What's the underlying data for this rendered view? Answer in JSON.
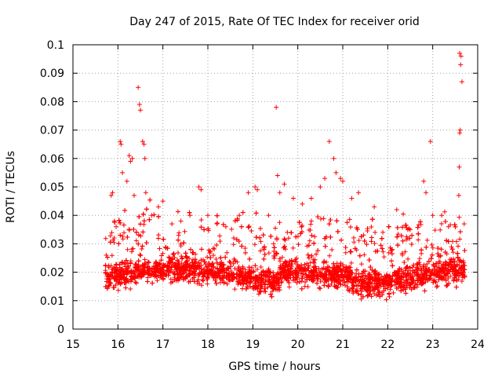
{
  "chart_data": {
    "type": "scatter",
    "title": "Day 247 of 2015, Rate Of TEC Index for receiver orid",
    "xlabel": "GPS time / hours",
    "ylabel": "ROTI / TECUs",
    "xlim": [
      15,
      24
    ],
    "ylim": [
      0,
      0.1
    ],
    "x_ticks": [
      "15",
      "16",
      "17",
      "18",
      "19",
      "20",
      "21",
      "22",
      "23",
      "24"
    ],
    "y_ticks": [
      "0",
      "0.01",
      "0.02",
      "0.03",
      "0.04",
      "0.05",
      "0.06",
      "0.07",
      "0.08",
      "0.09",
      "0.1"
    ],
    "grid": true,
    "legend": "none",
    "marker": "+",
    "color": "#ff0000",
    "series": [
      {
        "values": [
          [
            15.74,
            0.026
          ],
          [
            15.8,
            0.019
          ],
          [
            15.85,
            0.047
          ],
          [
            15.88,
            0.048
          ],
          [
            15.92,
            0.038
          ],
          [
            15.96,
            0.036
          ],
          [
            16.05,
            0.066
          ],
          [
            16.07,
            0.065
          ],
          [
            16.1,
            0.055
          ],
          [
            16.2,
            0.052
          ],
          [
            16.25,
            0.061
          ],
          [
            16.28,
            0.059
          ],
          [
            16.32,
            0.06
          ],
          [
            16.36,
            0.047
          ],
          [
            16.45,
            0.085
          ],
          [
            16.48,
            0.079
          ],
          [
            16.5,
            0.077
          ],
          [
            16.55,
            0.066
          ],
          [
            16.58,
            0.065
          ],
          [
            16.6,
            0.06
          ],
          [
            16.62,
            0.048
          ],
          [
            16.75,
            0.04
          ],
          [
            16.9,
            0.043
          ],
          [
            17.0,
            0.045
          ],
          [
            17.2,
            0.037
          ],
          [
            17.4,
            0.038
          ],
          [
            17.6,
            0.04
          ],
          [
            17.8,
            0.05
          ],
          [
            17.85,
            0.049
          ],
          [
            18.0,
            0.04
          ],
          [
            18.2,
            0.037
          ],
          [
            18.4,
            0.036
          ],
          [
            18.7,
            0.04
          ],
          [
            18.9,
            0.048
          ],
          [
            19.05,
            0.05
          ],
          [
            19.1,
            0.049
          ],
          [
            19.35,
            0.04
          ],
          [
            19.52,
            0.078
          ],
          [
            19.55,
            0.054
          ],
          [
            19.6,
            0.048
          ],
          [
            19.7,
            0.051
          ],
          [
            19.9,
            0.046
          ],
          [
            20.1,
            0.044
          ],
          [
            20.3,
            0.046
          ],
          [
            20.5,
            0.05
          ],
          [
            20.6,
            0.053
          ],
          [
            20.7,
            0.066
          ],
          [
            20.8,
            0.06
          ],
          [
            20.85,
            0.055
          ],
          [
            20.95,
            0.053
          ],
          [
            21.0,
            0.052
          ],
          [
            21.2,
            0.046
          ],
          [
            21.35,
            0.048
          ],
          [
            21.7,
            0.043
          ],
          [
            22.2,
            0.042
          ],
          [
            22.5,
            0.035
          ],
          [
            22.8,
            0.052
          ],
          [
            22.85,
            0.048
          ],
          [
            22.95,
            0.066
          ],
          [
            23.0,
            0.04
          ],
          [
            23.2,
            0.04
          ],
          [
            23.35,
            0.036
          ],
          [
            23.6,
            0.097
          ],
          [
            23.63,
            0.096
          ],
          [
            23.62,
            0.093
          ],
          [
            23.65,
            0.087
          ],
          [
            23.61,
            0.07
          ],
          [
            23.6,
            0.069
          ],
          [
            23.59,
            0.057
          ],
          [
            23.58,
            0.047
          ],
          [
            23.7,
            0.037
          ]
        ]
      }
    ]
  }
}
